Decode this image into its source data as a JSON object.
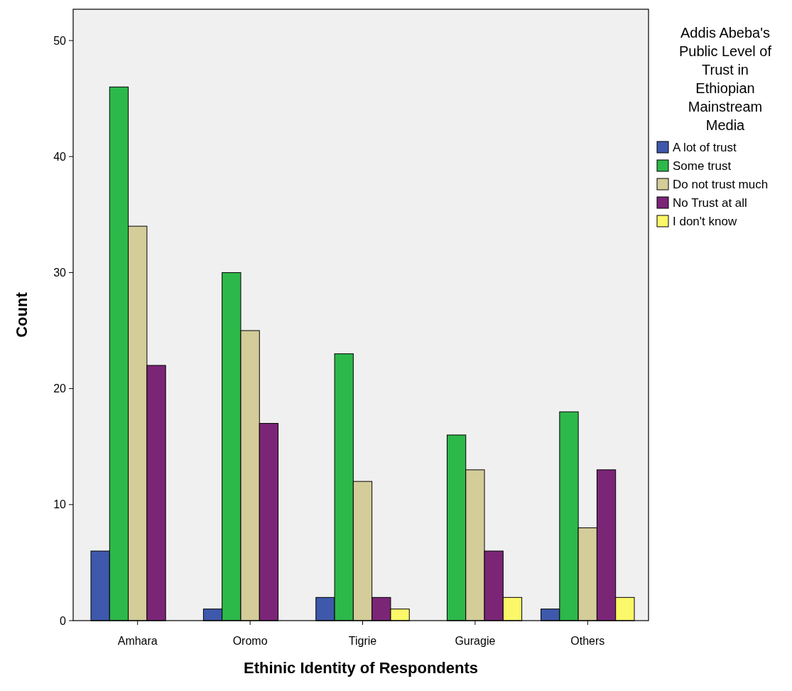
{
  "chart_data": {
    "type": "bar",
    "xlabel": "Ethinic Identity of Respondents",
    "ylabel": "Count",
    "legend_title": "Addis Abeba's Public Level of Trust in Ethiopian Mainstream Media",
    "categories": [
      "Amhara",
      "Oromo",
      "Tigrie",
      "Guragie",
      "Others"
    ],
    "series": [
      {
        "name": "A lot of trust",
        "color": "#3e58ac",
        "values": [
          6,
          1,
          2,
          0,
          1
        ]
      },
      {
        "name": "Some trust",
        "color": "#2db84a",
        "values": [
          46,
          30,
          23,
          16,
          18
        ]
      },
      {
        "name": "Do not trust much",
        "color": "#d4cc99",
        "values": [
          34,
          25,
          12,
          13,
          8
        ]
      },
      {
        "name": "No Trust at all",
        "color": "#7b2577",
        "values": [
          22,
          17,
          2,
          6,
          13
        ]
      },
      {
        "name": "I don't know",
        "color": "#fbf869",
        "values": [
          0,
          0,
          1,
          2,
          2
        ]
      }
    ],
    "ylim": [
      0,
      52.7
    ],
    "yticks": [
      0,
      10,
      20,
      30,
      40,
      50
    ],
    "grid": false,
    "legend": "top right"
  }
}
